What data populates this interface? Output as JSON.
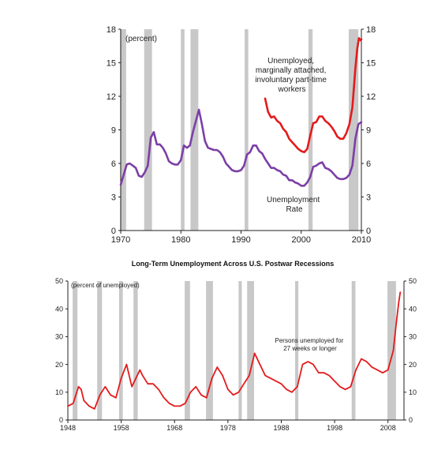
{
  "colors": {
    "line_red": "#e41a1c",
    "line_purple": "#7b3fa6",
    "recession": "#c8c8c8"
  },
  "chart_data": [
    {
      "type": "line",
      "title": "",
      "note": "(percent)",
      "xlabel": "",
      "ylabel": "",
      "xlim": [
        1970,
        2010
      ],
      "ylim": [
        0,
        18
      ],
      "x_ticks": [
        "1970",
        "1980",
        "1990",
        "2000",
        "2010"
      ],
      "y_ticks_left": [
        "0",
        "3",
        "6",
        "9",
        "12",
        "15",
        "18"
      ],
      "y_ticks_right": [
        "0",
        "3",
        "6",
        "9",
        "12",
        "15",
        "18"
      ],
      "recessions": [
        [
          1969.9,
          1970.9
        ],
        [
          1973.9,
          1975.2
        ],
        [
          1980.0,
          1980.6
        ],
        [
          1981.6,
          1982.9
        ],
        [
          1990.6,
          1991.2
        ],
        [
          2001.2,
          2001.9
        ],
        [
          2007.9,
          2009.5
        ]
      ],
      "series": [
        {
          "label": "Unemployed, marginally attached, involuntary part-time workers",
          "label_lines": [
            "Unemployed,",
            "marginally attached,",
            "involuntary part-time",
            "workers"
          ],
          "color": "#e41a1c",
          "x": [
            1994.0,
            1994.5,
            1995.0,
            1995.5,
            1996.0,
            1996.5,
            1997.0,
            1997.5,
            1998.0,
            1998.5,
            1999.0,
            1999.5,
            2000.0,
            2000.5,
            2001.0,
            2001.5,
            2002.0,
            2002.5,
            2003.0,
            2003.5,
            2004.0,
            2004.5,
            2005.0,
            2005.5,
            2006.0,
            2006.5,
            2007.0,
            2007.5,
            2008.0,
            2008.5,
            2009.0,
            2009.3,
            2009.6,
            2009.9,
            2010.0
          ],
          "y": [
            11.8,
            10.6,
            10.1,
            10.2,
            9.8,
            9.6,
            9.1,
            8.8,
            8.2,
            7.9,
            7.6,
            7.3,
            7.1,
            7.0,
            7.3,
            8.5,
            9.6,
            9.7,
            10.2,
            10.2,
            9.8,
            9.6,
            9.3,
            8.9,
            8.4,
            8.2,
            8.2,
            8.7,
            9.5,
            11.0,
            14.5,
            16.2,
            17.2,
            17.0,
            17.1
          ]
        },
        {
          "label": "Unemployment Rate",
          "label_lines": [
            "Unemployment",
            "Rate"
          ],
          "color": "#7b3fa6",
          "x": [
            1970.0,
            1970.5,
            1971.0,
            1971.5,
            1972.0,
            1972.5,
            1973.0,
            1973.5,
            1974.0,
            1974.5,
            1975.0,
            1975.5,
            1976.0,
            1976.5,
            1977.0,
            1977.5,
            1978.0,
            1978.5,
            1979.0,
            1979.5,
            1980.0,
            1980.5,
            1981.0,
            1981.5,
            1982.0,
            1982.5,
            1983.0,
            1983.5,
            1984.0,
            1984.5,
            1985.0,
            1985.5,
            1986.0,
            1986.5,
            1987.0,
            1987.5,
            1988.0,
            1988.5,
            1989.0,
            1989.5,
            1990.0,
            1990.5,
            1991.0,
            1991.5,
            1992.0,
            1992.5,
            1993.0,
            1993.5,
            1994.0,
            1994.5,
            1995.0,
            1995.5,
            1996.0,
            1996.5,
            1997.0,
            1997.5,
            1998.0,
            1998.5,
            1999.0,
            1999.5,
            2000.0,
            2000.5,
            2001.0,
            2001.5,
            2002.0,
            2002.5,
            2003.0,
            2003.5,
            2004.0,
            2004.5,
            2005.0,
            2005.5,
            2006.0,
            2006.5,
            2007.0,
            2007.5,
            2008.0,
            2008.5,
            2009.0,
            2009.5,
            2010.0
          ],
          "y": [
            4.1,
            5.0,
            5.9,
            6.0,
            5.8,
            5.6,
            4.9,
            4.8,
            5.2,
            5.8,
            8.3,
            8.8,
            7.7,
            7.7,
            7.4,
            6.9,
            6.2,
            6.0,
            5.9,
            5.9,
            6.3,
            7.6,
            7.4,
            7.6,
            8.8,
            9.8,
            10.8,
            9.5,
            8.0,
            7.4,
            7.3,
            7.2,
            7.2,
            7.0,
            6.6,
            6.0,
            5.7,
            5.4,
            5.3,
            5.3,
            5.4,
            5.8,
            6.8,
            7.0,
            7.6,
            7.6,
            7.1,
            6.9,
            6.4,
            6.0,
            5.6,
            5.6,
            5.4,
            5.3,
            5.0,
            4.9,
            4.5,
            4.5,
            4.3,
            4.2,
            4.0,
            4.0,
            4.3,
            4.8,
            5.7,
            5.8,
            6.0,
            6.1,
            5.6,
            5.5,
            5.3,
            5.0,
            4.7,
            4.6,
            4.6,
            4.7,
            5.0,
            5.8,
            8.2,
            9.5,
            9.7
          ]
        }
      ]
    },
    {
      "type": "line",
      "title": "Long-Term Unemployment Across U.S. Postwar Recessions",
      "note": "(percent of unemployed)",
      "xlabel": "",
      "ylabel": "",
      "xlim": [
        1948,
        2011
      ],
      "ylim": [
        0,
        50
      ],
      "x_ticks": [
        "1948",
        "1958",
        "1968",
        "1978",
        "1988",
        "1998",
        "2008"
      ],
      "y_ticks_left": [
        "0",
        "10",
        "20",
        "30",
        "40",
        "50"
      ],
      "y_ticks_right": [
        "0",
        "10",
        "20",
        "30",
        "40",
        "50"
      ],
      "recessions": [
        [
          1948.9,
          1949.8
        ],
        [
          1953.5,
          1954.4
        ],
        [
          1957.6,
          1958.3
        ],
        [
          1960.3,
          1961.1
        ],
        [
          1969.9,
          1970.9
        ],
        [
          1973.9,
          1975.2
        ],
        [
          1980.0,
          1980.6
        ],
        [
          1981.6,
          1982.9
        ],
        [
          1990.6,
          1991.2
        ],
        [
          2001.2,
          2001.9
        ],
        [
          2007.9,
          2009.5
        ]
      ],
      "series": [
        {
          "label": "Persons unemployed for 27 weeks or longer",
          "label_lines": [
            "Persons unemployed for",
            "27 weeks or longer"
          ],
          "color": "#e41a1c",
          "x": [
            1948.0,
            1949.0,
            1950.0,
            1950.5,
            1951.0,
            1952.0,
            1953.0,
            1954.0,
            1955.0,
            1956.0,
            1957.0,
            1958.0,
            1959.0,
            1960.0,
            1961.0,
            1961.5,
            1962.0,
            1963.0,
            1964.0,
            1965.0,
            1966.0,
            1967.0,
            1968.0,
            1969.0,
            1970.0,
            1971.0,
            1972.0,
            1973.0,
            1974.0,
            1975.0,
            1976.0,
            1977.0,
            1978.0,
            1979.0,
            1980.0,
            1981.0,
            1982.0,
            1983.0,
            1984.0,
            1985.0,
            1986.0,
            1987.0,
            1988.0,
            1989.0,
            1990.0,
            1991.0,
            1992.0,
            1993.0,
            1994.0,
            1995.0,
            1996.0,
            1997.0,
            1998.0,
            1999.0,
            2000.0,
            2001.0,
            2002.0,
            2003.0,
            2004.0,
            2005.0,
            2006.0,
            2007.0,
            2008.0,
            2009.0,
            2009.5,
            2010.0,
            2010.3
          ],
          "y": [
            5,
            6,
            12,
            11,
            7,
            5,
            4,
            9,
            12,
            9,
            8,
            15,
            20,
            12,
            16,
            18,
            16,
            13,
            13,
            11,
            8,
            6,
            5,
            5,
            6,
            10,
            12,
            9,
            8,
            15,
            19,
            16,
            11,
            9,
            10,
            13,
            16,
            24,
            20,
            16,
            15,
            14,
            13,
            11,
            10,
            12,
            20,
            21,
            20,
            17,
            17,
            16,
            14,
            12,
            11,
            12,
            18,
            22,
            21,
            19,
            18,
            17,
            18,
            25,
            34,
            42,
            46
          ]
        }
      ]
    }
  ]
}
